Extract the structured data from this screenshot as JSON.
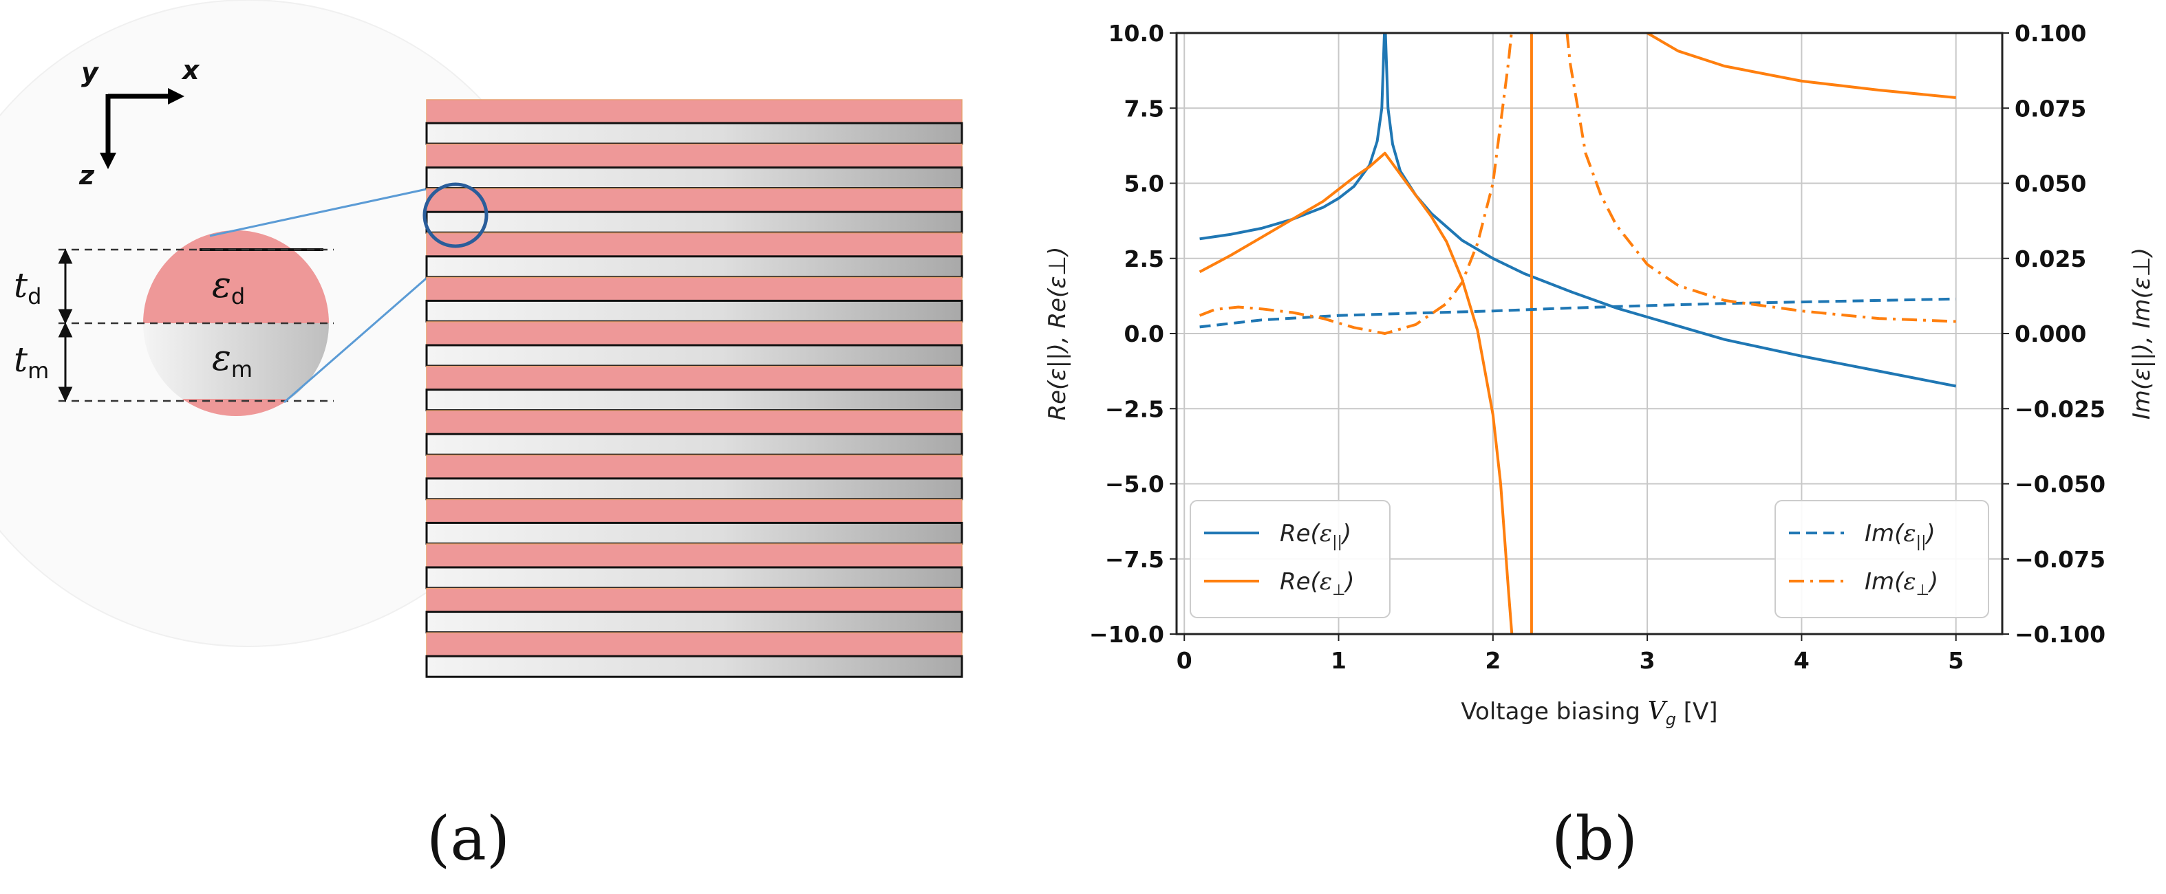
{
  "panel_a": {
    "label": "(a)",
    "axes": {
      "y": "y",
      "x": "x",
      "z": "z"
    },
    "layers": {
      "dielectric_symbol": "ε",
      "dielectric_subscript": "d",
      "metal_symbol": "ε",
      "metal_subscript": "m",
      "thickness_d_symbol": "t",
      "thickness_d_subscript": "d",
      "thickness_m_symbol": "t",
      "thickness_m_subscript": "m"
    },
    "stack_pairs": 13,
    "colors": {
      "dielectric": "#ee9898",
      "metal_light": "#f1f1f1",
      "metal_dark": "#a8a8a8",
      "zoom_circle": "#2a5d9a"
    }
  },
  "panel_b": {
    "label": "(b)"
  },
  "chart_data": {
    "type": "line",
    "xlabel": "Voltage biasing V_g [V]",
    "xlabel_prefix": "Voltage biasing ",
    "xlabel_var": "V",
    "xlabel_sub": "g",
    "xlabel_suffix": " [V]",
    "ylabel_left": "Re(ε||), Re(ε⊥)",
    "ylabel_right": "Im(ε||), Im(ε⊥)",
    "xlim": [
      -0.05,
      5.3
    ],
    "ylim_left": [
      -10,
      10
    ],
    "ylim_right": [
      -0.1,
      0.1
    ],
    "x_ticks": [
      0,
      1,
      2,
      3,
      4,
      5
    ],
    "x_tick_labels": [
      "0",
      "1",
      "2",
      "3",
      "4",
      "5"
    ],
    "y_left_ticks": [
      10,
      7.5,
      5,
      2.5,
      0,
      -2.5,
      -5,
      -7.5,
      -10
    ],
    "y_left_tick_labels": [
      "10.0",
      "7.5",
      "5.0",
      "2.5",
      "0.0",
      "−2.5",
      "−5.0",
      "−7.5",
      "−10.0"
    ],
    "y_right_ticks": [
      0.1,
      0.075,
      0.05,
      0.025,
      0,
      -0.025,
      -0.05,
      -0.075,
      -0.1
    ],
    "y_right_tick_labels": [
      "0.100",
      "0.075",
      "0.050",
      "0.025",
      "0.000",
      "−0.025",
      "−0.050",
      "−0.075",
      "−0.100"
    ],
    "grid": true,
    "series": [
      {
        "name": "Re(ε||)",
        "axis": "left",
        "color": "#1f77b4",
        "dash": "solid",
        "points": [
          [
            0.1,
            3.15
          ],
          [
            0.3,
            3.3
          ],
          [
            0.5,
            3.5
          ],
          [
            0.7,
            3.8
          ],
          [
            0.9,
            4.2
          ],
          [
            1.0,
            4.5
          ],
          [
            1.1,
            4.9
          ],
          [
            1.2,
            5.6
          ],
          [
            1.25,
            6.4
          ],
          [
            1.28,
            7.5
          ],
          [
            1.3,
            10.5
          ],
          [
            1.32,
            7.5
          ],
          [
            1.35,
            6.3
          ],
          [
            1.4,
            5.4
          ],
          [
            1.5,
            4.6
          ],
          [
            1.6,
            4.0
          ],
          [
            1.8,
            3.1
          ],
          [
            2.0,
            2.5
          ],
          [
            2.2,
            2.0
          ],
          [
            2.5,
            1.4
          ],
          [
            2.8,
            0.85
          ],
          [
            3.0,
            0.55
          ],
          [
            3.5,
            -0.2
          ],
          [
            4.0,
            -0.75
          ],
          [
            4.5,
            -1.25
          ],
          [
            5.0,
            -1.75
          ]
        ]
      },
      {
        "name": "Re(ε⊥)",
        "axis": "left",
        "color": "#ff7f0e",
        "dash": "solid",
        "points": [
          [
            0.1,
            2.05
          ],
          [
            0.3,
            2.6
          ],
          [
            0.5,
            3.2
          ],
          [
            0.7,
            3.8
          ],
          [
            0.9,
            4.4
          ],
          [
            1.1,
            5.2
          ],
          [
            1.2,
            5.55
          ],
          [
            1.3,
            6.0
          ],
          [
            1.4,
            5.3
          ],
          [
            1.5,
            4.6
          ],
          [
            1.6,
            3.9
          ],
          [
            1.7,
            3.05
          ],
          [
            1.8,
            1.8
          ],
          [
            1.9,
            0.1
          ],
          [
            2.0,
            -2.7
          ],
          [
            2.05,
            -5.0
          ],
          [
            2.1,
            -8.5
          ],
          [
            2.13,
            -10.5
          ]
        ]
      },
      {
        "name": "Re(ε⊥) branch",
        "axis": "left",
        "color": "#ff7f0e",
        "dash": "solid",
        "in_legend": false,
        "points": [
          [
            2.25,
            -10.5
          ],
          [
            2.25,
            10.5
          ]
        ]
      },
      {
        "name": "Re(ε⊥) branch 2",
        "axis": "left",
        "color": "#ff7f0e",
        "dash": "solid",
        "in_legend": false,
        "points": [
          [
            3.0,
            10.0
          ],
          [
            3.2,
            9.4
          ],
          [
            3.5,
            8.9
          ],
          [
            4.0,
            8.4
          ],
          [
            4.5,
            8.1
          ],
          [
            5.0,
            7.85
          ]
        ]
      },
      {
        "name": "Im(ε||)",
        "axis": "right",
        "color": "#1f77b4",
        "dash": "dashed",
        "points": [
          [
            0.1,
            0.0022
          ],
          [
            0.5,
            0.0045
          ],
          [
            1.0,
            0.006
          ],
          [
            1.5,
            0.0068
          ],
          [
            2.0,
            0.0075
          ],
          [
            2.5,
            0.0085
          ],
          [
            3.0,
            0.0093
          ],
          [
            3.5,
            0.01
          ],
          [
            4.0,
            0.0105
          ],
          [
            4.5,
            0.011
          ],
          [
            5.0,
            0.0115
          ]
        ]
      },
      {
        "name": "Im(ε⊥)",
        "axis": "right",
        "color": "#ff7f0e",
        "dash": "dashdot",
        "points": [
          [
            0.1,
            0.006
          ],
          [
            0.2,
            0.008
          ],
          [
            0.35,
            0.0088
          ],
          [
            0.5,
            0.0082
          ],
          [
            0.7,
            0.007
          ],
          [
            0.9,
            0.005
          ],
          [
            1.1,
            0.002
          ],
          [
            1.3,
            0.0
          ],
          [
            1.5,
            0.003
          ],
          [
            1.7,
            0.01
          ],
          [
            1.8,
            0.017
          ],
          [
            1.9,
            0.03
          ],
          [
            2.0,
            0.05
          ],
          [
            2.05,
            0.07
          ],
          [
            2.1,
            0.09
          ],
          [
            2.12,
            0.1
          ]
        ]
      },
      {
        "name": "Im(ε⊥) branch",
        "axis": "right",
        "color": "#ff7f0e",
        "dash": "dashdot",
        "in_legend": false,
        "points": [
          [
            2.48,
            0.1
          ],
          [
            2.5,
            0.09
          ],
          [
            2.55,
            0.075
          ],
          [
            2.6,
            0.06
          ],
          [
            2.7,
            0.046
          ],
          [
            2.8,
            0.036
          ],
          [
            3.0,
            0.023
          ],
          [
            3.2,
            0.016
          ],
          [
            3.5,
            0.011
          ],
          [
            4.0,
            0.0075
          ],
          [
            4.5,
            0.005
          ],
          [
            5.0,
            0.004
          ]
        ]
      }
    ],
    "legend_left": [
      {
        "var": "Re",
        "sym": "ε",
        "sub": "||",
        "color": "#1f77b4",
        "dash": "solid"
      },
      {
        "var": "Re",
        "sym": "ε",
        "sub": "⊥",
        "color": "#ff7f0e",
        "dash": "solid"
      }
    ],
    "legend_right": [
      {
        "var": "Im",
        "sym": "ε",
        "sub": "||",
        "color": "#1f77b4",
        "dash": "dashed"
      },
      {
        "var": "Im",
        "sym": "ε",
        "sub": "⊥",
        "color": "#ff7f0e",
        "dash": "dashdot"
      }
    ],
    "legend_placement": [
      "lower-left",
      "lower-right"
    ]
  }
}
